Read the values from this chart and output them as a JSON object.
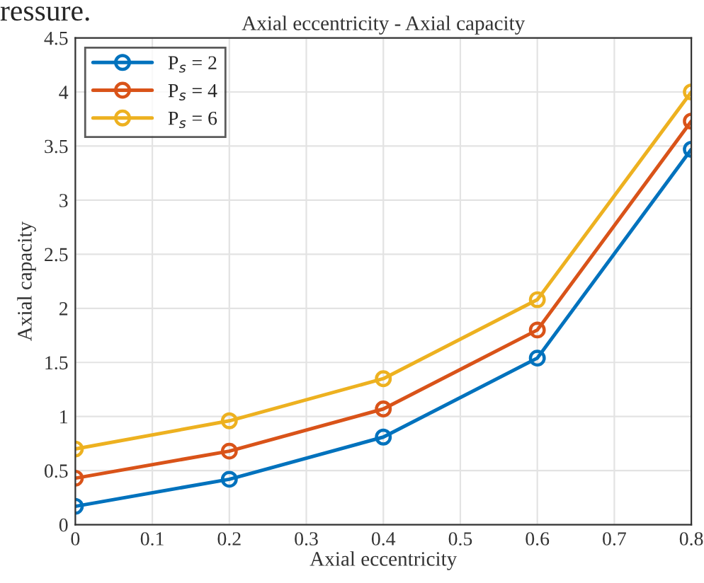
{
  "chart_data": {
    "type": "line",
    "title": "Axial eccentricity - Axial capacity",
    "xlabel": "Axial eccentricity",
    "ylabel": "Axial capacity",
    "annotations": [
      "ressure."
    ],
    "x": [
      0,
      0.2,
      0.4,
      0.6,
      0.8
    ],
    "series": [
      {
        "name": "P$_{s}$ = 2",
        "color": "#0072bd",
        "values": [
          0.17,
          0.42,
          0.81,
          1.54,
          3.47
        ]
      },
      {
        "name": "P$_{s}$ = 4",
        "color": "#d95319",
        "values": [
          0.43,
          0.68,
          1.07,
          1.8,
          3.73
        ]
      },
      {
        "name": "P$_{s}$ = 6",
        "color": "#edb120",
        "values": [
          0.7,
          0.96,
          1.35,
          2.08,
          4.0
        ]
      }
    ],
    "xlim": [
      0,
      0.8
    ],
    "xticks": [
      0,
      0.1,
      0.2,
      0.3,
      0.4,
      0.5,
      0.6,
      0.7,
      0.8
    ],
    "ylim": [
      0,
      4.5
    ],
    "yticks": [
      0,
      0.5,
      1,
      1.5,
      2,
      2.5,
      3,
      3.5,
      4,
      4.5
    ],
    "grid": true,
    "legend": "top left",
    "marker": "circle",
    "line_style": "solid"
  }
}
